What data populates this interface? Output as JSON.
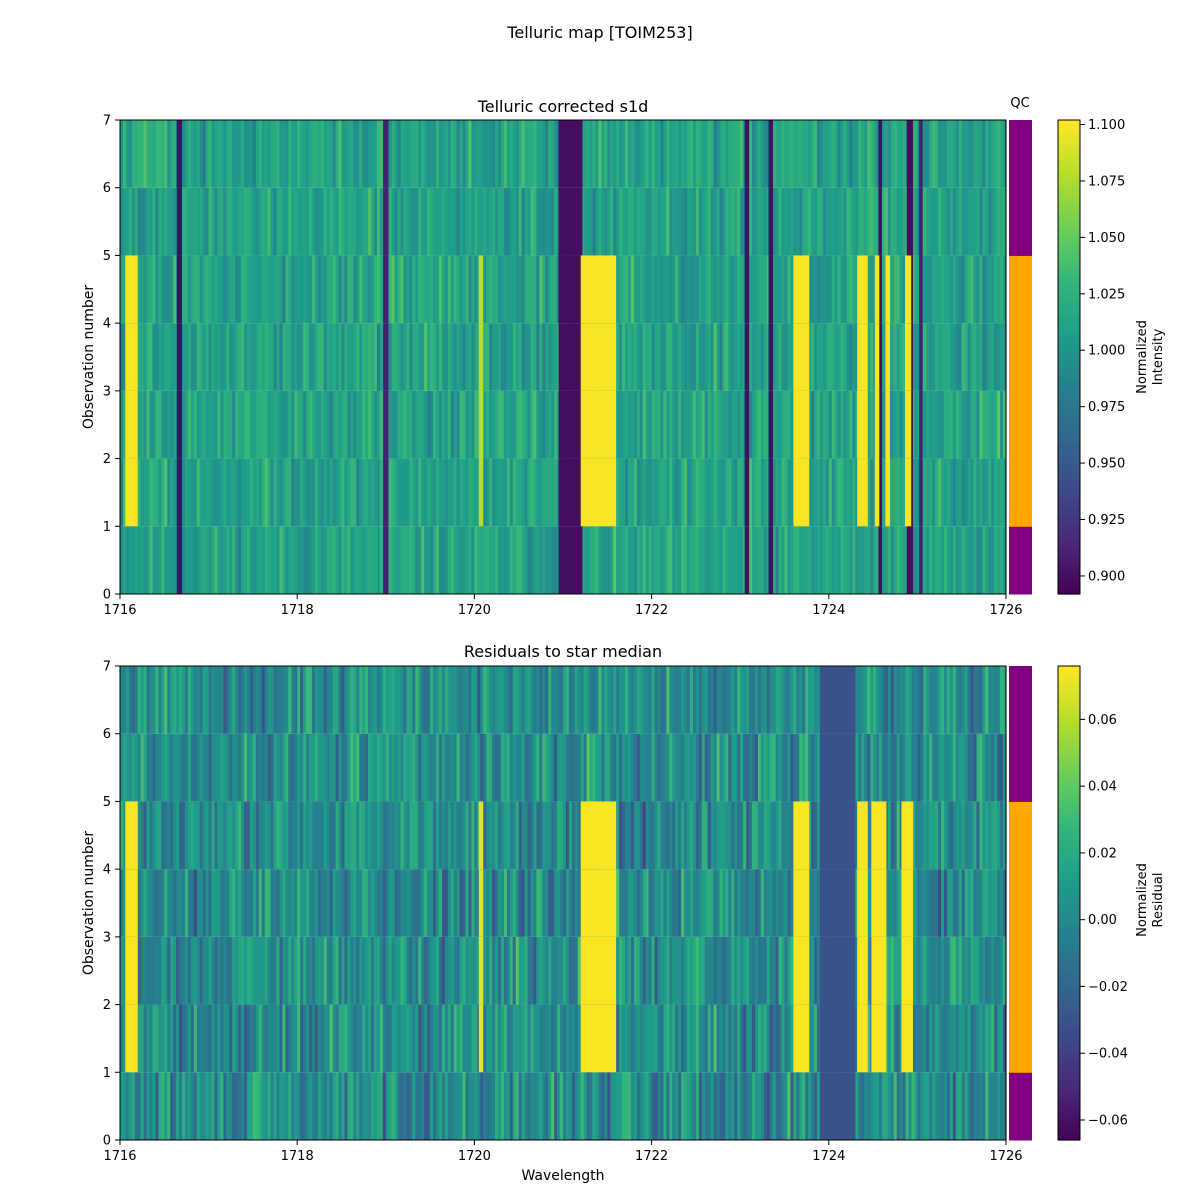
{
  "figure": {
    "title": "Telluric map [TOIM253]"
  },
  "chart_data": [
    {
      "type": "heatmap",
      "title": "Telluric corrected s1d",
      "xlabel": "",
      "ylabel": "Observation number",
      "xlim": [
        1716,
        1726
      ],
      "ylim": [
        0,
        7
      ],
      "xticks": [
        "1716",
        "1718",
        "1720",
        "1722",
        "1724",
        "1726"
      ],
      "yticks": [
        "0",
        "1",
        "2",
        "3",
        "4",
        "5",
        "6",
        "7"
      ],
      "colormap": "viridis",
      "colorbar": {
        "label_line1": "Normalized",
        "label_line2": "Intensity",
        "range": [
          0.892,
          1.102
        ],
        "ticks": [
          "0.900",
          "0.925",
          "0.950",
          "0.975",
          "1.000",
          "1.025",
          "1.050",
          "1.075",
          "1.100"
        ]
      },
      "rows": [
        {
          "observation": 0,
          "qc": false
        },
        {
          "observation": 1,
          "qc": true
        },
        {
          "observation": 2,
          "qc": true
        },
        {
          "observation": 3,
          "qc": true
        },
        {
          "observation": 4,
          "qc": true
        },
        {
          "observation": 5,
          "qc": false
        },
        {
          "observation": 6,
          "qc": false
        }
      ],
      "bright_features": [
        {
          "x0": 1716.06,
          "x1": 1716.2,
          "value": 1.1
        },
        {
          "x0": 1720.05,
          "x1": 1720.1,
          "value": 1.08
        },
        {
          "x0": 1721.2,
          "x1": 1721.6,
          "value": 1.1
        },
        {
          "x0": 1723.6,
          "x1": 1723.78,
          "value": 1.1
        },
        {
          "x0": 1724.32,
          "x1": 1724.44,
          "value": 1.1
        },
        {
          "x0": 1724.52,
          "x1": 1724.57,
          "value": 1.1
        },
        {
          "x0": 1724.64,
          "x1": 1724.69,
          "value": 1.1
        },
        {
          "x0": 1724.86,
          "x1": 1724.93,
          "value": 1.1
        }
      ],
      "dark_features": [
        {
          "x0": 1716.64,
          "x1": 1716.7,
          "value": 0.9
        },
        {
          "x0": 1718.97,
          "x1": 1719.03,
          "value": 0.91
        },
        {
          "x0": 1720.95,
          "x1": 1721.22,
          "value": 0.9
        },
        {
          "x0": 1723.05,
          "x1": 1723.1,
          "value": 0.9
        },
        {
          "x0": 1723.32,
          "x1": 1723.37,
          "value": 0.9
        },
        {
          "x0": 1724.56,
          "x1": 1724.6,
          "value": 0.9
        },
        {
          "x0": 1724.88,
          "x1": 1724.95,
          "value": 0.9
        },
        {
          "x0": 1725.02,
          "x1": 1725.06,
          "value": 0.91
        }
      ],
      "qc_title": "QC",
      "qc_colors": {
        "pass": "#ffa500",
        "fail": "#800080"
      }
    },
    {
      "type": "heatmap",
      "title": "Residuals to star median",
      "xlabel": "Wavelength",
      "ylabel": "Observation number",
      "xlim": [
        1716,
        1726
      ],
      "ylim": [
        0,
        7
      ],
      "xticks": [
        "1716",
        "1718",
        "1720",
        "1722",
        "1724",
        "1726"
      ],
      "yticks": [
        "0",
        "1",
        "2",
        "3",
        "4",
        "5",
        "6",
        "7"
      ],
      "colormap": "viridis",
      "colorbar": {
        "label_line1": "Normalized",
        "label_line2": "Residual",
        "range": [
          -0.066,
          0.076
        ],
        "ticks": [
          "−0.06",
          "−0.04",
          "−0.02",
          "0.00",
          "0.02",
          "0.04",
          "0.06"
        ]
      },
      "rows": [
        {
          "observation": 0,
          "qc": false
        },
        {
          "observation": 1,
          "qc": true
        },
        {
          "observation": 2,
          "qc": true
        },
        {
          "observation": 3,
          "qc": true
        },
        {
          "observation": 4,
          "qc": true
        },
        {
          "observation": 5,
          "qc": false
        },
        {
          "observation": 6,
          "qc": false
        }
      ],
      "bright_features": [
        {
          "x0": 1716.06,
          "x1": 1716.2,
          "value": 0.075
        },
        {
          "x0": 1720.05,
          "x1": 1720.1,
          "value": 0.07
        },
        {
          "x0": 1721.2,
          "x1": 1721.6,
          "value": 0.075
        },
        {
          "x0": 1723.6,
          "x1": 1723.78,
          "value": 0.075
        },
        {
          "x0": 1724.32,
          "x1": 1724.44,
          "value": 0.075
        },
        {
          "x0": 1724.48,
          "x1": 1724.65,
          "value": 0.075
        },
        {
          "x0": 1724.82,
          "x1": 1724.95,
          "value": 0.075
        }
      ],
      "dark_features": [
        {
          "x0": 1723.9,
          "x1": 1724.3,
          "value": -0.03
        }
      ],
      "qc_title": "",
      "qc_colors": {
        "pass": "#ffa500",
        "fail": "#800080"
      }
    }
  ]
}
